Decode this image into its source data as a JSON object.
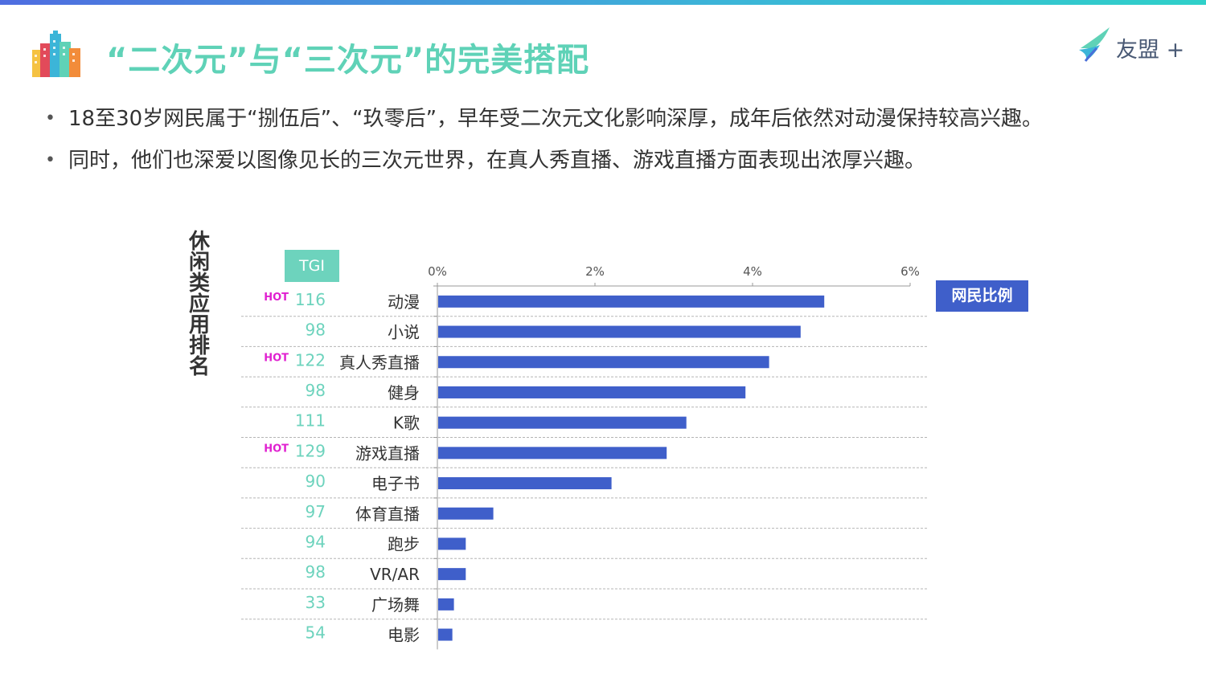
{
  "title": "“二次元”与“三次元”的完美搭配",
  "logo": {
    "text": "友盟 +"
  },
  "bullets": [
    "18至30岁网民属于“捌伍后”、“玖零后”，早年受二次元文化影响深厚，成年后依然对动漫保持较高兴趣。",
    "同时，他们也深爱以图像见长的三次元世界，在真人秀直播、游戏直播方面表现出浓厚兴趣。"
  ],
  "colors": {
    "title": "#5fd2b7",
    "bar": "#3f5fca",
    "tgi": "#6dd3bd",
    "hot": "#e020d0"
  },
  "chart_data": {
    "type": "bar",
    "orientation": "horizontal",
    "ylabel": "休闲类应用排名",
    "tgi_header": "TGI",
    "legend": "网民比例",
    "hot_label": "HOT",
    "categories": [
      "动漫",
      "小说",
      "真人秀直播",
      "健身",
      "K歌",
      "游戏直播",
      "电子书",
      "体育直播",
      "跑步",
      "VR/AR",
      "广场舞",
      "电影"
    ],
    "values": [
      4.9,
      4.6,
      4.2,
      3.9,
      3.15,
      2.9,
      2.2,
      0.7,
      0.35,
      0.35,
      0.2,
      0.18
    ],
    "tgi": [
      116,
      98,
      122,
      98,
      111,
      129,
      90,
      97,
      94,
      98,
      33,
      54
    ],
    "hot": [
      true,
      false,
      true,
      false,
      false,
      true,
      false,
      false,
      false,
      false,
      false,
      false
    ],
    "xlim": [
      0,
      6
    ],
    "xticks": [
      "0%",
      "2%",
      "4%",
      "6%"
    ],
    "grid": false,
    "legend_position": "right"
  }
}
